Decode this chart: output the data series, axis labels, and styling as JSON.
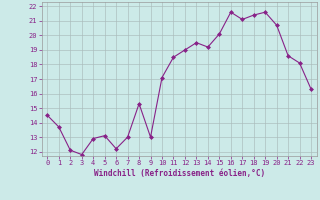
{
  "x": [
    0,
    1,
    2,
    3,
    4,
    5,
    6,
    7,
    8,
    9,
    10,
    11,
    12,
    13,
    14,
    15,
    16,
    17,
    18,
    19,
    20,
    21,
    22,
    23
  ],
  "y": [
    14.5,
    13.7,
    12.1,
    11.8,
    12.9,
    13.1,
    12.2,
    13.0,
    15.3,
    13.0,
    17.1,
    18.5,
    19.0,
    19.5,
    19.2,
    20.1,
    21.6,
    21.1,
    21.4,
    21.6,
    20.7,
    18.6,
    18.1,
    16.3
  ],
  "line_color": "#882288",
  "marker": "D",
  "marker_size": 2.0,
  "background_color": "#cceae8",
  "grid_color": "#aabbbb",
  "xlabel": "Windchill (Refroidissement éolien,°C)",
  "tick_color": "#882288",
  "ylim": [
    12,
    22
  ],
  "xlim": [
    -0.5,
    23.5
  ],
  "yticks": [
    12,
    13,
    14,
    15,
    16,
    17,
    18,
    19,
    20,
    21,
    22
  ],
  "xticks": [
    0,
    1,
    2,
    3,
    4,
    5,
    6,
    7,
    8,
    9,
    10,
    11,
    12,
    13,
    14,
    15,
    16,
    17,
    18,
    19,
    20,
    21,
    22,
    23
  ],
  "font_name": "monospace"
}
